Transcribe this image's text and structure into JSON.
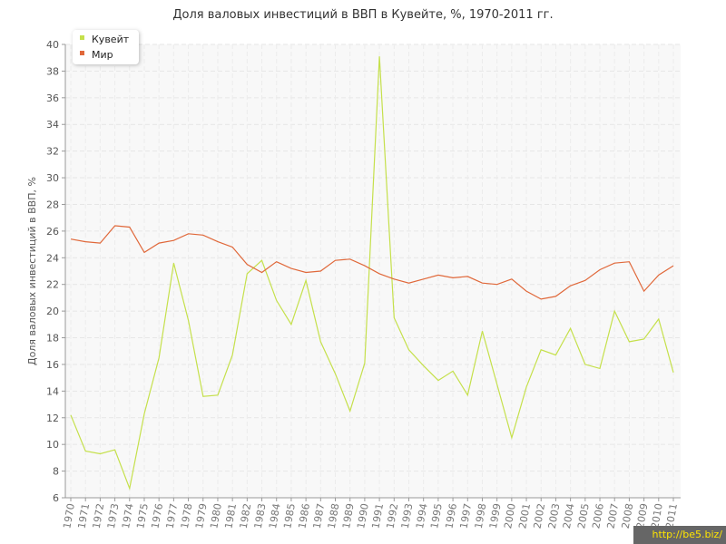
{
  "watermark": "http://be5.biz/",
  "chart_data": {
    "type": "line",
    "title": "Доля валовых инвестиций в ВВП в Кувейте, %, 1970-2011 гг.",
    "xlabel": "",
    "ylabel": "Доля валовых инвестиций в ВВП, %",
    "ylim": [
      6,
      40
    ],
    "yticks": [
      6,
      8,
      10,
      12,
      14,
      16,
      18,
      20,
      22,
      24,
      26,
      28,
      30,
      32,
      34,
      36,
      38,
      40
    ],
    "grid": true,
    "legend_position": "top-left",
    "x": [
      1970,
      1971,
      1972,
      1973,
      1974,
      1975,
      1976,
      1977,
      1978,
      1979,
      1980,
      1981,
      1982,
      1983,
      1984,
      1985,
      1986,
      1987,
      1988,
      1989,
      1990,
      1991,
      1992,
      1993,
      1994,
      1995,
      1996,
      1997,
      1998,
      1999,
      2000,
      2001,
      2002,
      2003,
      2004,
      2005,
      2006,
      2007,
      2008,
      2009,
      2010,
      2011
    ],
    "series": [
      {
        "name": "Кувейт",
        "color": "#c5e04b",
        "values": [
          12.2,
          9.5,
          9.3,
          9.6,
          6.7,
          12.3,
          16.5,
          23.6,
          19.3,
          13.6,
          13.7,
          16.7,
          22.8,
          23.8,
          20.8,
          19.0,
          22.3,
          17.7,
          15.3,
          12.5,
          16.1,
          39.1,
          19.5,
          17.1,
          15.9,
          14.8,
          15.5,
          13.7,
          18.5,
          14.5,
          10.5,
          14.3,
          17.1,
          16.7,
          18.7,
          16.0,
          15.7,
          20.0,
          17.7,
          17.9,
          19.4,
          15.4
        ]
      },
      {
        "name": "Мир",
        "color": "#e0683a",
        "values": [
          25.4,
          25.2,
          25.1,
          26.4,
          26.3,
          24.4,
          25.1,
          25.3,
          25.8,
          25.7,
          25.2,
          24.8,
          23.5,
          22.9,
          23.7,
          23.2,
          22.9,
          23.0,
          23.8,
          23.9,
          23.4,
          22.8,
          22.4,
          22.1,
          22.4,
          22.7,
          22.5,
          22.6,
          22.1,
          22.0,
          22.4,
          21.5,
          20.9,
          21.1,
          21.9,
          22.3,
          23.1,
          23.6,
          23.7,
          21.5,
          22.7,
          23.4
        ]
      }
    ]
  }
}
